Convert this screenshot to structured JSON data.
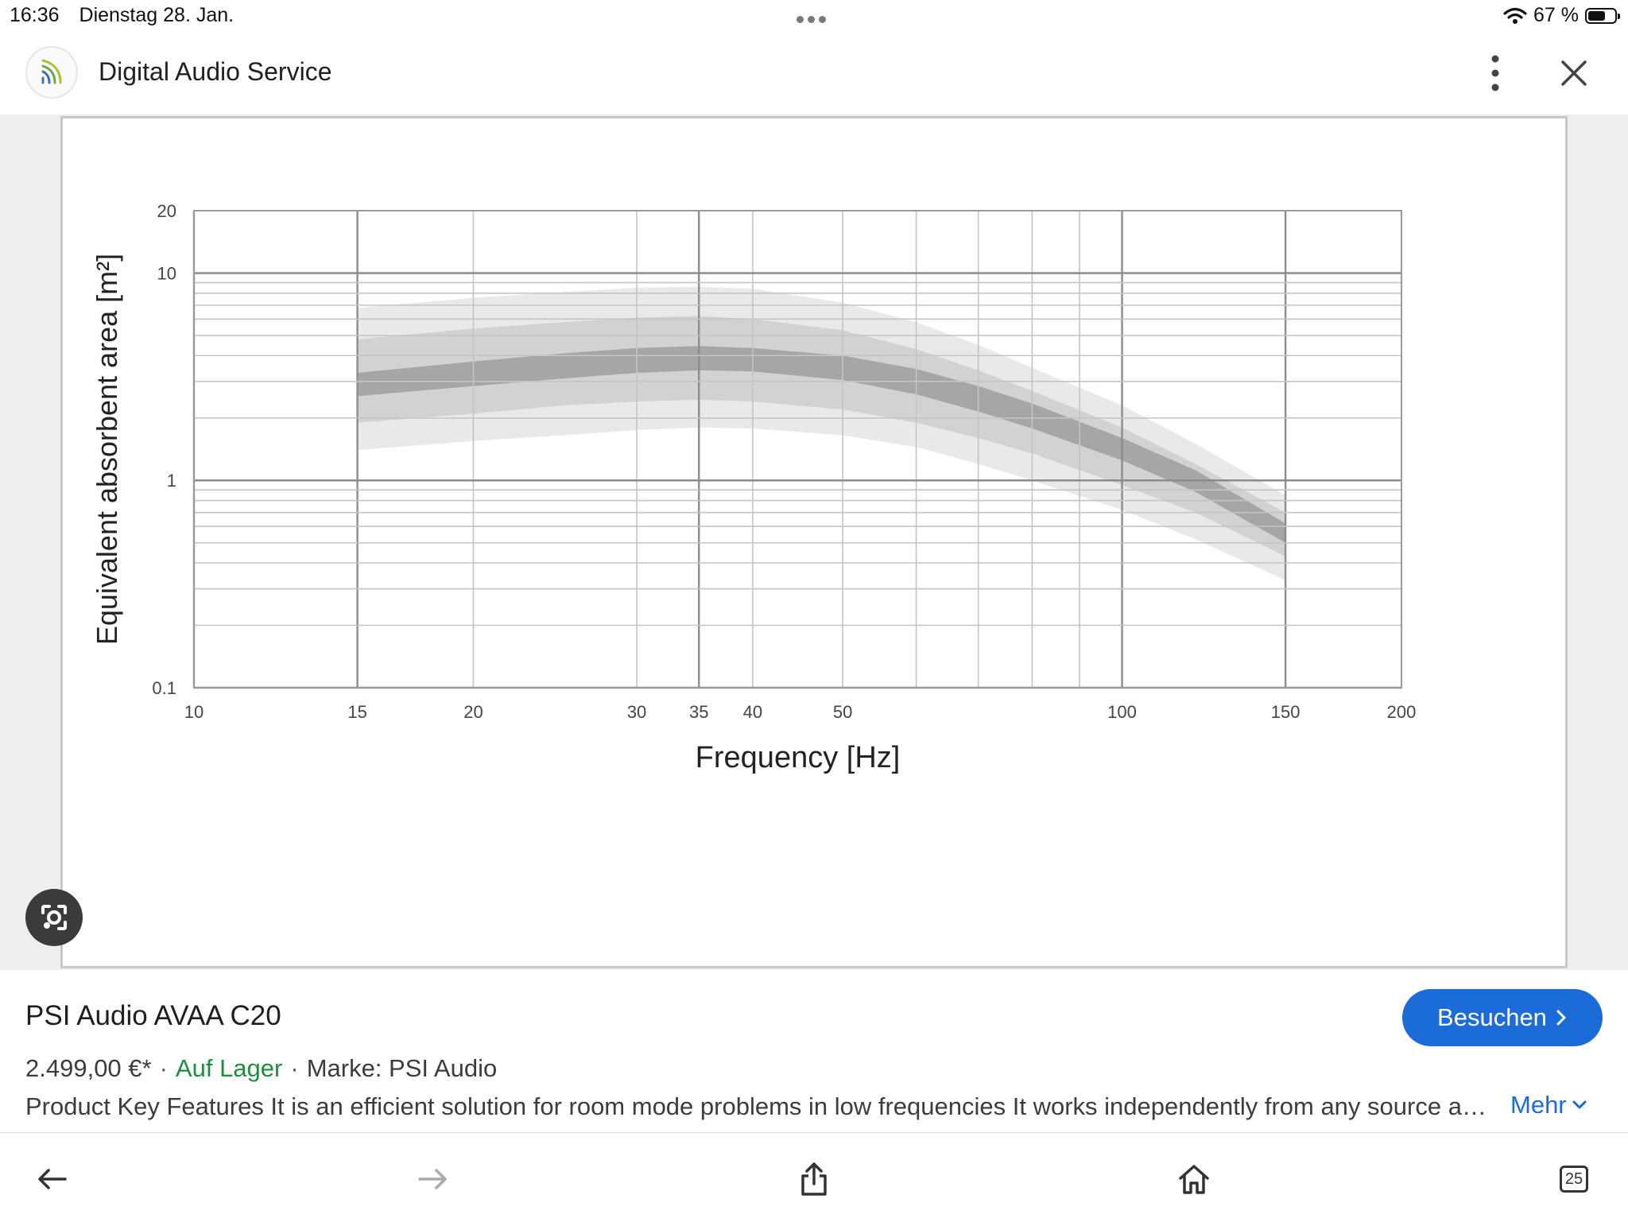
{
  "status_bar": {
    "time": "16:36",
    "date": "Dienstag 28. Jan.",
    "battery_percent": "67 %",
    "battery_level": 0.67,
    "icons": [
      "wifi-icon",
      "battery-icon"
    ]
  },
  "header": {
    "site_title": "Digital Audio Service",
    "icons": [
      "site-logo-icon",
      "more-vertical-icon",
      "close-icon"
    ]
  },
  "chart_data": {
    "type": "area",
    "xlabel": "Frequency [Hz]",
    "ylabel": "Equivalent absorbent area  [m²]",
    "x_scale": "log",
    "y_scale": "log",
    "xlim": [
      10,
      200
    ],
    "ylim": [
      0.1,
      20
    ],
    "x_ticks": [
      {
        "value": 10,
        "label": "10"
      },
      {
        "value": 15,
        "label": "15"
      },
      {
        "value": 20,
        "label": "20"
      },
      {
        "value": 30,
        "label": "30"
      },
      {
        "value": 35,
        "label": "35"
      },
      {
        "value": 40,
        "label": "40"
      },
      {
        "value": 50,
        "label": "50"
      },
      {
        "value": 100,
        "label": "100"
      },
      {
        "value": 150,
        "label": "150"
      },
      {
        "value": 200,
        "label": "200"
      }
    ],
    "y_ticks": [
      {
        "value": 0.1,
        "label": "0.1"
      },
      {
        "value": 1,
        "label": "1"
      },
      {
        "value": 10,
        "label": "10"
      },
      {
        "value": 20,
        "label": "20"
      }
    ],
    "grid": true,
    "x": [
      15,
      20,
      25,
      30,
      35,
      40,
      50,
      60,
      70,
      80,
      100,
      120,
      150
    ],
    "bands": [
      {
        "shade": "#e9e9e9",
        "lower": [
          1.4,
          1.55,
          1.65,
          1.75,
          1.8,
          1.78,
          1.65,
          1.45,
          1.2,
          1.0,
          0.72,
          0.52,
          0.33
        ],
        "upper": [
          6.8,
          7.6,
          8.1,
          8.5,
          8.6,
          8.4,
          7.2,
          5.8,
          4.5,
          3.5,
          2.3,
          1.5,
          0.85
        ]
      },
      {
        "shade": "#d2d2d2",
        "lower": [
          1.9,
          2.1,
          2.3,
          2.4,
          2.45,
          2.4,
          2.2,
          1.9,
          1.6,
          1.35,
          0.95,
          0.7,
          0.43
        ],
        "upper": [
          4.8,
          5.4,
          5.8,
          6.1,
          6.2,
          6.0,
          5.3,
          4.3,
          3.4,
          2.7,
          1.8,
          1.2,
          0.7
        ]
      },
      {
        "shade": "#a6a6a6",
        "lower": [
          2.55,
          2.85,
          3.1,
          3.3,
          3.4,
          3.35,
          3.05,
          2.6,
          2.15,
          1.78,
          1.25,
          0.88,
          0.5
        ],
        "upper": [
          3.3,
          3.75,
          4.1,
          4.35,
          4.45,
          4.35,
          4.0,
          3.45,
          2.85,
          2.35,
          1.6,
          1.12,
          0.62
        ]
      }
    ]
  },
  "viewer": {
    "icons": [
      "lens-search-icon"
    ]
  },
  "product": {
    "title": "PSI Audio AVAA C20",
    "visit_label": "Besuchen",
    "price": "2.499,00 €*",
    "stock": "Auf Lager",
    "brand": "Marke: PSI Audio",
    "separator": "·",
    "description": "Product Key Features It is an efficient solution for room mode problems in low frequencies It works independently from any source and any room",
    "more_label": "Mehr",
    "colors": {
      "accent": "#1b6bd9",
      "stock": "#1e8e3e"
    }
  },
  "toolbar": {
    "tabs_count": "25",
    "icons": [
      "back-arrow-icon",
      "forward-arrow-icon",
      "share-icon",
      "home-icon",
      "tabs-icon"
    ]
  }
}
